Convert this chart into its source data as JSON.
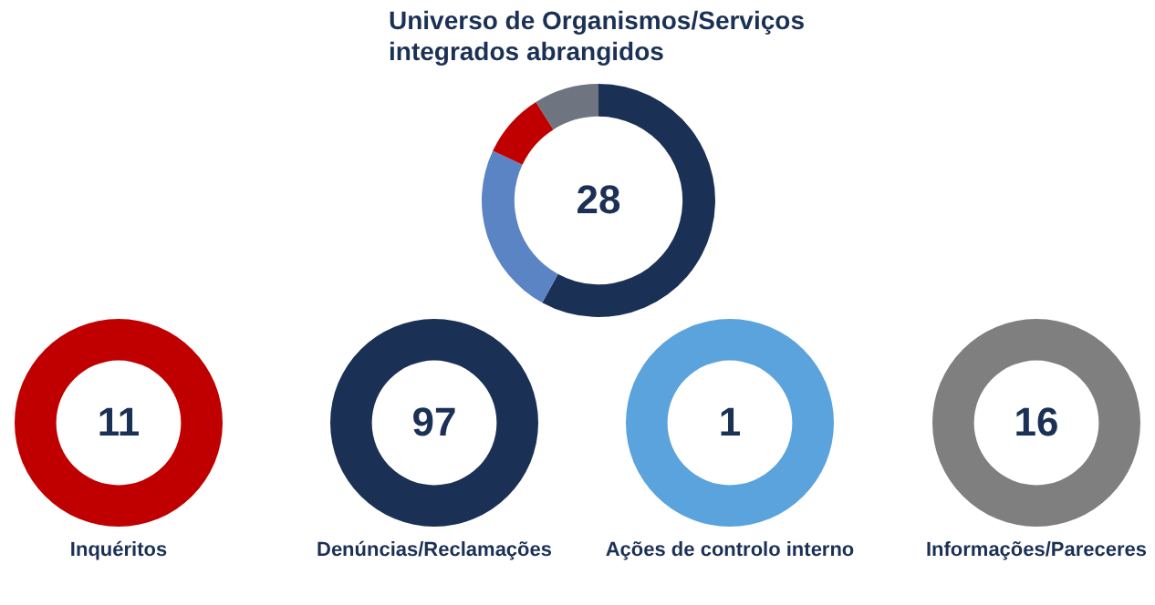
{
  "chart_data": [
    {
      "type": "donut",
      "title": "Universo de Organismos/Serviços integrados abrangidos",
      "categories": [
        null,
        null,
        null,
        null
      ],
      "values": [
        58,
        24,
        9,
        9
      ],
      "colors": [
        "#1b3055",
        "#5b84c4",
        "#c00000",
        "#6e7480"
      ],
      "annotations": [
        "28"
      ]
    },
    {
      "type": "donut",
      "title": "Inquéritos",
      "categories": [
        null
      ],
      "values": [
        100
      ],
      "colors": [
        "#c00000"
      ],
      "annotations": [
        "11"
      ]
    },
    {
      "type": "donut",
      "title": "Denúncias/Reclamações",
      "categories": [
        null
      ],
      "values": [
        100
      ],
      "colors": [
        "#1b3055"
      ],
      "annotations": [
        "97"
      ]
    },
    {
      "type": "donut",
      "title": "Ações de controlo interno",
      "categories": [
        null
      ],
      "values": [
        100
      ],
      "colors": [
        "#5ba3dc"
      ],
      "annotations": [
        "1"
      ]
    },
    {
      "type": "donut",
      "title": "Informações/Pareceres",
      "categories": [
        null
      ],
      "values": [
        100
      ],
      "colors": [
        "#7f7f7f"
      ],
      "annotations": [
        "16"
      ]
    }
  ]
}
